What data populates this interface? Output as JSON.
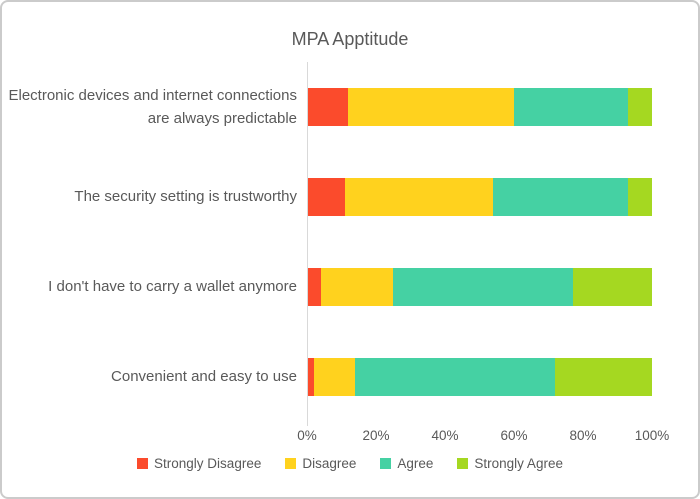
{
  "chart_data": {
    "type": "bar",
    "stacked": true,
    "orientation": "horizontal",
    "title": "MPA Apptitude",
    "categories": [
      "Electronic devices and internet connections are always predictable",
      "The security setting is trustworthy",
      "I don't have to carry a wallet anymore",
      "Convenient and easy to use"
    ],
    "series": [
      {
        "name": "Strongly Disagree",
        "color": "#fb4b2c",
        "values": [
          12,
          11,
          4,
          2
        ]
      },
      {
        "name": "Disagree",
        "color": "#ffd21e",
        "values": [
          48,
          43,
          21,
          12
        ]
      },
      {
        "name": "Agree",
        "color": "#45d1a3",
        "values": [
          33,
          39,
          52,
          58
        ]
      },
      {
        "name": "Strongly Agree",
        "color": "#a5d821",
        "values": [
          7,
          7,
          23,
          28
        ]
      }
    ],
    "x_ticks": [
      "0%",
      "20%",
      "40%",
      "60%",
      "80%",
      "100%"
    ],
    "xlim": [
      0,
      100
    ],
    "legend_position": "bottom",
    "gridlines": false,
    "colors": {
      "title_text": "#595959",
      "axis_text": "#595959",
      "axis_line": "#d9d9d9",
      "frame_border": "#cbcbcb"
    }
  }
}
